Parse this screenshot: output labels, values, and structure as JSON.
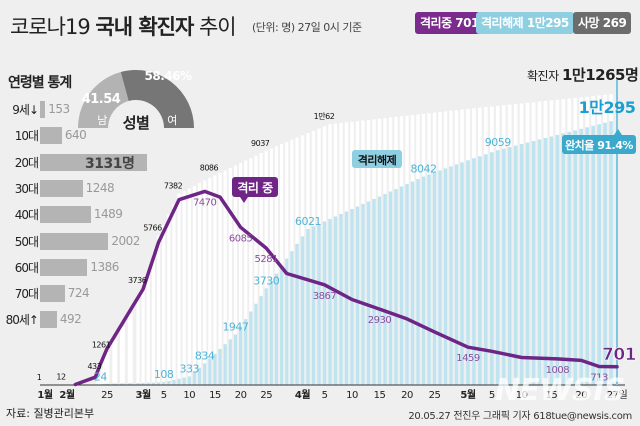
{
  "header": {
    "title_light": "코로나19",
    "title_bold": "국내 확진자",
    "title_light2": "추이",
    "unit": "(단위: 명) 27일 0시 기준"
  },
  "badges": [
    {
      "label": "격리중 701",
      "color": "#7b2b8c"
    },
    {
      "label": "격리해제 1만295",
      "color": "#8ecfe2"
    },
    {
      "label": "사망 269",
      "color": "#6c6c6c"
    }
  ],
  "total": {
    "label": "확진자",
    "value": "1만1265명"
  },
  "gender": {
    "title": "성별",
    "male_label": "남",
    "female_label": "여",
    "male_pct": "41.54",
    "female_pct": "58.46%",
    "male_value": 41.54,
    "female_value": 58.46,
    "male_color": "#b3b3b3",
    "female_color": "#767676"
  },
  "age": {
    "title": "연령별 통계",
    "items": [
      {
        "label": "9세↓",
        "value": 153,
        "text": "153"
      },
      {
        "label": "10대",
        "value": 640,
        "text": "640"
      },
      {
        "label": "20대",
        "value": 3131,
        "text": "3131명"
      },
      {
        "label": "30대",
        "value": 1248,
        "text": "1248"
      },
      {
        "label": "40대",
        "value": 1489,
        "text": "1489"
      },
      {
        "label": "50대",
        "value": 2002,
        "text": "2002"
      },
      {
        "label": "60대",
        "value": 1386,
        "text": "1386"
      },
      {
        "label": "70대",
        "value": 724,
        "text": "724"
      },
      {
        "label": "80세↑",
        "value": 492,
        "text": "492"
      }
    ]
  },
  "chart_data": {
    "type": "bar+line",
    "title": "코로나19 국내 확진자 추이",
    "x_ticks": [
      {
        "date": "01-20",
        "label": "1월"
      },
      {
        "date": "02-01",
        "label": "2월"
      },
      {
        "date": "02-25",
        "label": "25"
      },
      {
        "date": "03-01",
        "label": "3월"
      },
      {
        "date": "03-05",
        "label": "5"
      },
      {
        "date": "03-10",
        "label": "10"
      },
      {
        "date": "03-15",
        "label": "15"
      },
      {
        "date": "03-20",
        "label": "20"
      },
      {
        "date": "03-25",
        "label": "25"
      },
      {
        "date": "04-01",
        "label": "4월"
      },
      {
        "date": "04-05",
        "label": "5"
      },
      {
        "date": "04-10",
        "label": "10"
      },
      {
        "date": "04-15",
        "label": "15"
      },
      {
        "date": "04-20",
        "label": "20"
      },
      {
        "date": "04-25",
        "label": "25"
      },
      {
        "date": "05-01",
        "label": "5월"
      },
      {
        "date": "05-05",
        "label": "5"
      },
      {
        "date": "05-10",
        "label": "10"
      },
      {
        "date": "05-15",
        "label": "15"
      },
      {
        "date": "05-20",
        "label": "20"
      },
      {
        "date": "05-27",
        "label": "27일"
      }
    ],
    "ylim": [
      0,
      11265
    ],
    "series": [
      {
        "name": "확진자",
        "kind": "bar",
        "color": "#ffffff",
        "points": [
          {
            "date": "01-20",
            "value": 1,
            "label": "1"
          },
          {
            "date": "02-01",
            "value": 12,
            "label": "12"
          },
          {
            "date": "02-18",
            "value": 31
          },
          {
            "date": "02-21",
            "value": 433,
            "label": "433"
          },
          {
            "date": "02-25",
            "value": 1261,
            "label": "1261"
          },
          {
            "date": "03-01",
            "value": 3736,
            "label": "3736"
          },
          {
            "date": "03-04",
            "value": 5766,
            "label": "5766"
          },
          {
            "date": "03-08",
            "value": 7382,
            "label": "7382"
          },
          {
            "date": "03-15",
            "value": 8086,
            "label": "8086"
          },
          {
            "date": "03-25",
            "value": 9037,
            "label": "9037"
          },
          {
            "date": "04-06",
            "value": 10062,
            "label": "1만62"
          },
          {
            "date": "05-27",
            "value": 11265
          }
        ]
      },
      {
        "name": "격리해제",
        "kind": "bar",
        "color": "#bfe4f0",
        "label_color": "#4fb3d6",
        "points": [
          {
            "date": "02-01",
            "value": 0
          },
          {
            "date": "02-21",
            "value": 24,
            "label": "24"
          },
          {
            "date": "03-05",
            "value": 108,
            "label": "108"
          },
          {
            "date": "03-10",
            "value": 333,
            "label": "333"
          },
          {
            "date": "03-13",
            "value": 834,
            "label": "834"
          },
          {
            "date": "03-19",
            "value": 1947,
            "label": "1947"
          },
          {
            "date": "03-25",
            "value": 3730,
            "label": "3730"
          },
          {
            "date": "04-02",
            "value": 6021,
            "label": "6021"
          },
          {
            "date": "04-23",
            "value": 8042,
            "label": "8042"
          },
          {
            "date": "05-06",
            "value": 9059,
            "label": "9059"
          },
          {
            "date": "05-27",
            "value": 10295
          }
        ]
      },
      {
        "name": "격리 중",
        "kind": "line",
        "color": "#6e2585",
        "label_color": "#8a4fa0",
        "points": [
          {
            "date": "02-06",
            "value": 20
          },
          {
            "date": "02-18",
            "value": 300
          },
          {
            "date": "02-21",
            "value": 800
          },
          {
            "date": "02-25",
            "value": 1400
          },
          {
            "date": "03-01",
            "value": 3700
          },
          {
            "date": "03-04",
            "value": 5500
          },
          {
            "date": "03-08",
            "value": 7150
          },
          {
            "date": "03-13",
            "value": 7470,
            "label": "7470"
          },
          {
            "date": "03-16",
            "value": 7250
          },
          {
            "date": "03-20",
            "value": 6085,
            "label": "6085"
          },
          {
            "date": "03-25",
            "value": 5281,
            "label": "5281"
          },
          {
            "date": "03-29",
            "value": 4300
          },
          {
            "date": "04-05",
            "value": 3867,
            "label": "3867"
          },
          {
            "date": "04-10",
            "value": 3300
          },
          {
            "date": "04-15",
            "value": 2930,
            "label": "2930"
          },
          {
            "date": "04-20",
            "value": 2550
          },
          {
            "date": "04-25",
            "value": 2050
          },
          {
            "date": "05-01",
            "value": 1459,
            "label": "1459"
          },
          {
            "date": "05-05",
            "value": 1300
          },
          {
            "date": "05-10",
            "value": 1060
          },
          {
            "date": "05-16",
            "value": 1008,
            "label": "1008"
          },
          {
            "date": "05-20",
            "value": 950
          },
          {
            "date": "05-23",
            "value": 713,
            "label": "713"
          },
          {
            "date": "05-27",
            "value": 701
          }
        ]
      }
    ],
    "annotations": {
      "isolation_tag": "격리 중",
      "released_tag": "격리해제",
      "top_label": "1만295",
      "recovery_rate": "완치율 91.4%",
      "last_value": "701"
    }
  },
  "footer": {
    "source": "자료: 질병관리본부",
    "credit": "20.05.27 전진우 그래픽 기자 618tue@newsis.com",
    "watermark": "NEWSIS"
  }
}
